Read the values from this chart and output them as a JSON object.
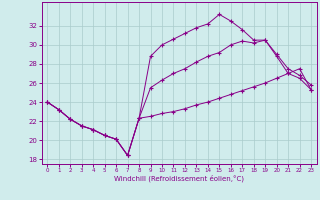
{
  "xlabel": "Windchill (Refroidissement éolien,°C)",
  "bg_color": "#d0ecec",
  "line_color": "#880088",
  "grid_color": "#aacccc",
  "ylim": [
    17.5,
    34.5
  ],
  "xlim": [
    -0.5,
    23.5
  ],
  "yticks": [
    18,
    20,
    22,
    24,
    26,
    28,
    30,
    32
  ],
  "xticks": [
    0,
    1,
    2,
    3,
    4,
    5,
    6,
    7,
    8,
    9,
    10,
    11,
    12,
    13,
    14,
    15,
    16,
    17,
    18,
    19,
    20,
    21,
    22,
    23
  ],
  "series": [
    [
      24.0,
      23.2,
      22.2,
      21.5,
      21.1,
      20.5,
      20.1,
      18.4,
      22.3,
      28.8,
      30.0,
      30.6,
      31.2,
      31.8,
      32.2,
      33.2,
      32.5,
      31.6,
      30.5,
      30.5,
      28.8,
      27.0,
      26.5,
      25.3
    ],
    [
      24.0,
      23.2,
      22.2,
      21.5,
      21.1,
      20.5,
      20.1,
      18.4,
      22.3,
      25.5,
      26.3,
      27.0,
      27.5,
      28.2,
      28.8,
      29.2,
      30.0,
      30.4,
      30.2,
      30.5,
      29.0,
      27.5,
      26.8,
      25.8
    ],
    [
      24.0,
      23.2,
      22.2,
      21.5,
      21.1,
      20.5,
      20.1,
      18.4,
      22.3,
      22.5,
      22.8,
      23.0,
      23.3,
      23.7,
      24.0,
      24.4,
      24.8,
      25.2,
      25.6,
      26.0,
      26.5,
      27.0,
      27.5,
      25.3
    ]
  ]
}
